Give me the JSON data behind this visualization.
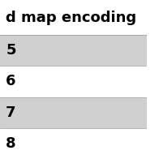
{
  "header_text": "d map encoding",
  "rows": [
    "5",
    "6",
    "7",
    "8"
  ],
  "row_colors": [
    "#d0d0d0",
    "#ffffff",
    "#d0d0d0",
    "#ffffff"
  ],
  "header_bg": "#ffffff",
  "header_font_size": 13,
  "row_font_size": 13,
  "background_color": "#ffffff",
  "text_color": "#000000",
  "header_color": "#000000"
}
